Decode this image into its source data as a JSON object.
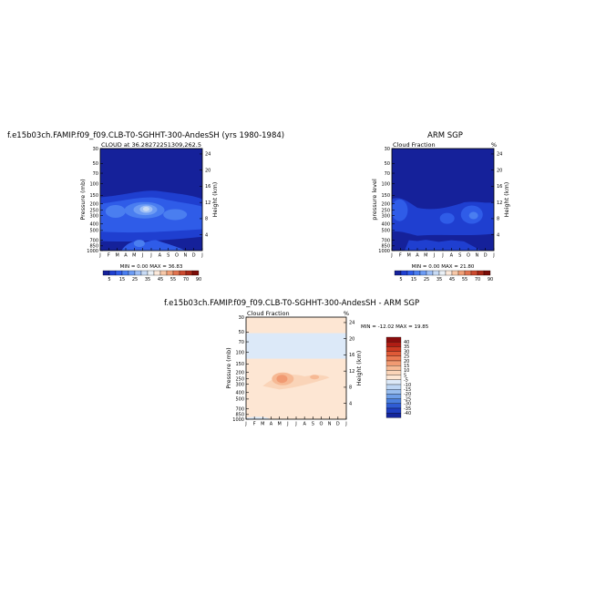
{
  "header": {
    "model_title": "f.e15b03ch.FAMIP.f09_f09.CLB-T0-SGHHT-300-AndesSH (yrs 1980-1984)",
    "obs_title": "ARM SGP",
    "diff_title": "f.e15b03ch.FAMIP.f09_f09.CLB-T0-SGHHT-300-AndesSH - ARM SGP"
  },
  "panels": {
    "model": {
      "subtitle": "CLOUD at 36.28272251309,262.5",
      "left_label": "Pressure (mb)",
      "right_label": "Height (km)",
      "corner_mark": "",
      "minmax": "MIN = 0.00 MAX = 36.83"
    },
    "obs": {
      "subtitle": "Cloud Fraction",
      "left_label": "pressure level",
      "right_label": "Height (km)",
      "corner_mark": "%",
      "minmax": "MIN = 0.00 MAX = 21.80"
    },
    "diff": {
      "subtitle": "Cloud Fraction",
      "left_label": "Pressure (mb)",
      "right_label": "Height (km)",
      "corner_mark": "%",
      "minmax": "MIN = -12.02 MAX = 19.85"
    }
  },
  "colorbars": {
    "abs_labels": [
      "5",
      "15",
      "25",
      "35",
      "45",
      "55",
      "70",
      "90"
    ],
    "abs_colors": [
      "#15219a",
      "#1f3fd0",
      "#2f5ce8",
      "#4a7ef0",
      "#6d9cf4",
      "#9ebff6",
      "#c8dbf5",
      "#eaf0f6",
      "#fbe8da",
      "#f7c8a8",
      "#f0a078",
      "#e27450",
      "#cc4a30",
      "#a82818",
      "#7a0c08"
    ],
    "diff_labels": [
      "40",
      "35",
      "30",
      "25",
      "20",
      "15",
      "10",
      "5",
      "-5",
      "-10",
      "-15",
      "-20",
      "-25",
      "-30",
      "-35",
      "-40"
    ],
    "diff_colors": [
      "#8a0d0d",
      "#b01d14",
      "#cc3a22",
      "#df5a37",
      "#ea7a52",
      "#f19a72",
      "#f6b994",
      "#fad4b8",
      "#fde6d3",
      "#dce9f8",
      "#bdd5f3",
      "#98bdee",
      "#6f9fe8",
      "#4a7fdf",
      "#2f5cd4",
      "#1f3ec0",
      "#14259c"
    ]
  },
  "chart_data": [
    {
      "type": "heatmap",
      "title": "CLOUD at 36.28272251309,262.5",
      "xlabel": "",
      "ylabel": "Pressure (mb)",
      "y2label": "Height (km)",
      "x_ticks": [
        "J",
        "F",
        "M",
        "A",
        "M",
        "J",
        "J",
        "A",
        "S",
        "O",
        "N",
        "D",
        "J"
      ],
      "y_ticks": [
        30,
        50,
        70,
        100,
        150,
        200,
        250,
        300,
        400,
        500,
        700,
        850,
        1000
      ],
      "y_scale": "log",
      "y_range": [
        30,
        1000
      ],
      "y2_ticks": [
        4,
        8,
        12,
        16,
        20,
        24
      ],
      "levels": [
        5,
        10,
        15,
        20,
        25,
        30,
        35,
        40,
        45,
        50,
        55,
        60,
        70,
        80,
        90
      ],
      "min": 0.0,
      "max": 36.83,
      "regions": [
        {
          "month": 5.4,
          "pressure": 250,
          "value": 36
        },
        {
          "month": 2.0,
          "pressure": 250,
          "value": 25
        },
        {
          "month": 8.5,
          "pressure": 280,
          "value": 20
        },
        {
          "month": 4.5,
          "pressure": 800,
          "value": 15
        }
      ]
    },
    {
      "type": "heatmap",
      "title": "Cloud Fraction",
      "xlabel": "",
      "ylabel": "pressure level",
      "y2label": "Height (km)",
      "x_ticks": [
        "J",
        "F",
        "M",
        "A",
        "M",
        "J",
        "J",
        "A",
        "S",
        "O",
        "N",
        "D",
        "J"
      ],
      "y_ticks": [
        30,
        50,
        70,
        100,
        150,
        200,
        250,
        300,
        400,
        500,
        700,
        850,
        1000
      ],
      "y_scale": "log",
      "y_range": [
        30,
        1000
      ],
      "y2_ticks": [
        4,
        8,
        12,
        16,
        20,
        24
      ],
      "levels": [
        5,
        10,
        15,
        20,
        25,
        30,
        35,
        40,
        45,
        50,
        55,
        60,
        70,
        80,
        90
      ],
      "min": 0.0,
      "max": 21.8,
      "regions": [
        {
          "month": 1.0,
          "pressure": 260,
          "value": 15
        },
        {
          "month": 6.5,
          "pressure": 300,
          "value": 12
        },
        {
          "month": 9.5,
          "pressure": 300,
          "value": 20
        }
      ]
    },
    {
      "type": "heatmap",
      "title": "Cloud Fraction",
      "xlabel": "",
      "ylabel": "Pressure (mb)",
      "y2label": "Height (km)",
      "x_ticks": [
        "J",
        "F",
        "M",
        "A",
        "M",
        "J",
        "J",
        "A",
        "S",
        "O",
        "N",
        "D",
        "J"
      ],
      "y_ticks": [
        30,
        50,
        70,
        100,
        150,
        200,
        250,
        300,
        400,
        500,
        700,
        850,
        1000
      ],
      "y_scale": "log",
      "y_range": [
        30,
        1000
      ],
      "y2_ticks": [
        4,
        8,
        12,
        16,
        20,
        24
      ],
      "levels": [
        -40,
        -35,
        -30,
        -25,
        -20,
        -15,
        -10,
        -5,
        5,
        10,
        15,
        20,
        25,
        30,
        35,
        40
      ],
      "min": -12.02,
      "max": 19.85,
      "regions": [
        {
          "month": 4.5,
          "pressure": 250,
          "value": 19
        },
        {
          "month": 6.5,
          "pressure": 280,
          "value": 10
        },
        {
          "month": 6.0,
          "pressure": 60,
          "value": -5
        }
      ]
    }
  ]
}
